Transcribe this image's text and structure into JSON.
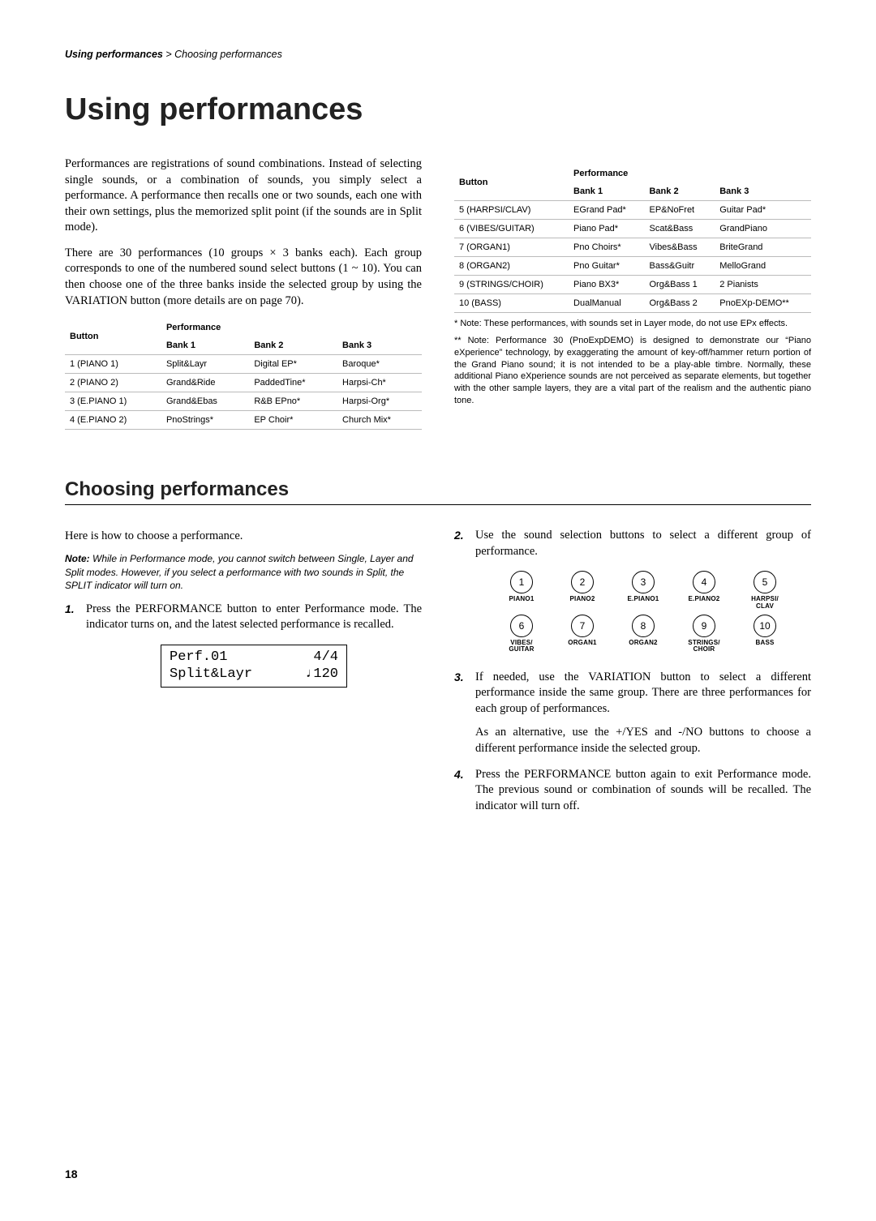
{
  "header": {
    "bold": "Using performances",
    "rest": " > Choosing performances"
  },
  "title": "Using performances",
  "intro_p1": "Performances are registrations of sound combinations. Instead of selecting single sounds, or a combination of sounds, you simply select a performance. A performance then recalls one or two sounds, each one with their own settings, plus the memorized split point (if the sounds are in Split mode).",
  "intro_p2": "There are 30 performances (10 groups × 3 banks each). Each group corresponds to one of the numbered sound select buttons (1 ~ 10). You can then choose one of the three banks inside the selected group by using the VARIATION button (more details are on page 70).",
  "table_headers": {
    "button": "Button",
    "performance": "Performance",
    "banks": [
      "Bank 1",
      "Bank 2",
      "Bank 3"
    ]
  },
  "table_left": [
    {
      "btn": "1 (PIANO 1)",
      "b1": "Split&Layr",
      "b2": "Digital EP*",
      "b3": "Baroque*"
    },
    {
      "btn": "2 (PIANO 2)",
      "b1": "Grand&Ride",
      "b2": "PaddedTine*",
      "b3": "Harpsi-Ch*"
    },
    {
      "btn": "3 (E.PIANO 1)",
      "b1": "Grand&Ebas",
      "b2": "R&B EPno*",
      "b3": "Harpsi-Org*"
    },
    {
      "btn": "4 (E.PIANO 2)",
      "b1": "PnoStrings*",
      "b2": "EP Choir*",
      "b3": "Church Mix*"
    }
  ],
  "table_right": [
    {
      "btn": "5 (HARPSI/CLAV)",
      "b1": "EGrand Pad*",
      "b2": "EP&NoFret",
      "b3": "Guitar Pad*"
    },
    {
      "btn": "6 (VIBES/GUITAR)",
      "b1": "Piano Pad*",
      "b2": "Scat&Bass",
      "b3": "GrandPiano"
    },
    {
      "btn": "7 (ORGAN1)",
      "b1": "Pno Choirs*",
      "b2": "Vibes&Bass",
      "b3": "BriteGrand"
    },
    {
      "btn": "8 (ORGAN2)",
      "b1": "Pno Guitar*",
      "b2": "Bass&Guitr",
      "b3": "MelloGrand"
    },
    {
      "btn": "9 (STRINGS/CHOIR)",
      "b1": "Piano BX3*",
      "b2": "Org&Bass 1",
      "b3": "2 Pianists"
    },
    {
      "btn": "10 (BASS)",
      "b1": "DualManual",
      "b2": "Org&Bass 2",
      "b3": "PnoEXp-DEMO**"
    }
  ],
  "footnote1": "* Note: These performances, with sounds set in Layer mode, do not use EPx effects.",
  "footnote2": "** Note: Performance 30 (PnoExpDEMO) is designed to demonstrate our “Piano eXperience” technology, by exaggerating the amount of key-off/hammer return portion of the Grand Piano sound; it is not intended to be a play-able timbre. Normally, these additional Piano eXperience sounds are not perceived as separate elements, but together with the other sample layers, they are a vital part of the realism and the authentic piano tone.",
  "section2_title": "Choosing performances",
  "section2_intro": "Here is how to choose a performance.",
  "section2_note_bold": "Note:",
  "section2_note": " While in Performance mode, you cannot switch between Single, Layer and Split modes. However, if you select a performance with two sounds in Split, the SPLIT indicator will turn on.",
  "step1": "Press the PERFORMANCE button to enter Performance mode. The indicator turns on, and the latest selected performance is recalled.",
  "lcd": {
    "r1l": "Perf.01",
    "r1r": "4/4",
    "r2l": "Split&Layr",
    "r2r": "♩120"
  },
  "step2": "Use the sound selection buttons to select a different group of performance.",
  "buttons": [
    {
      "n": "1",
      "label": "PIANO1"
    },
    {
      "n": "2",
      "label": "PIANO2"
    },
    {
      "n": "3",
      "label": "E.PIANO1"
    },
    {
      "n": "4",
      "label": "E.PIANO2"
    },
    {
      "n": "5",
      "label": "HARPSI/\nCLAV"
    },
    {
      "n": "6",
      "label": "VIBES/\nGUITAR"
    },
    {
      "n": "7",
      "label": "ORGAN1"
    },
    {
      "n": "8",
      "label": "ORGAN2"
    },
    {
      "n": "9",
      "label": "STRINGS/\nCHOIR"
    },
    {
      "n": "10",
      "label": "BASS"
    }
  ],
  "step3": "If needed, use the VARIATION button to select a different performance inside the same group. There are three performances for each group of performances.",
  "step3b": "As an alternative, use the +/YES and -/NO buttons to choose a different performance inside the selected group.",
  "step4": "Press the PERFORMANCE button again to exit Performance mode. The previous sound or combination of sounds will be recalled. The indicator will turn off.",
  "page_number": "18"
}
